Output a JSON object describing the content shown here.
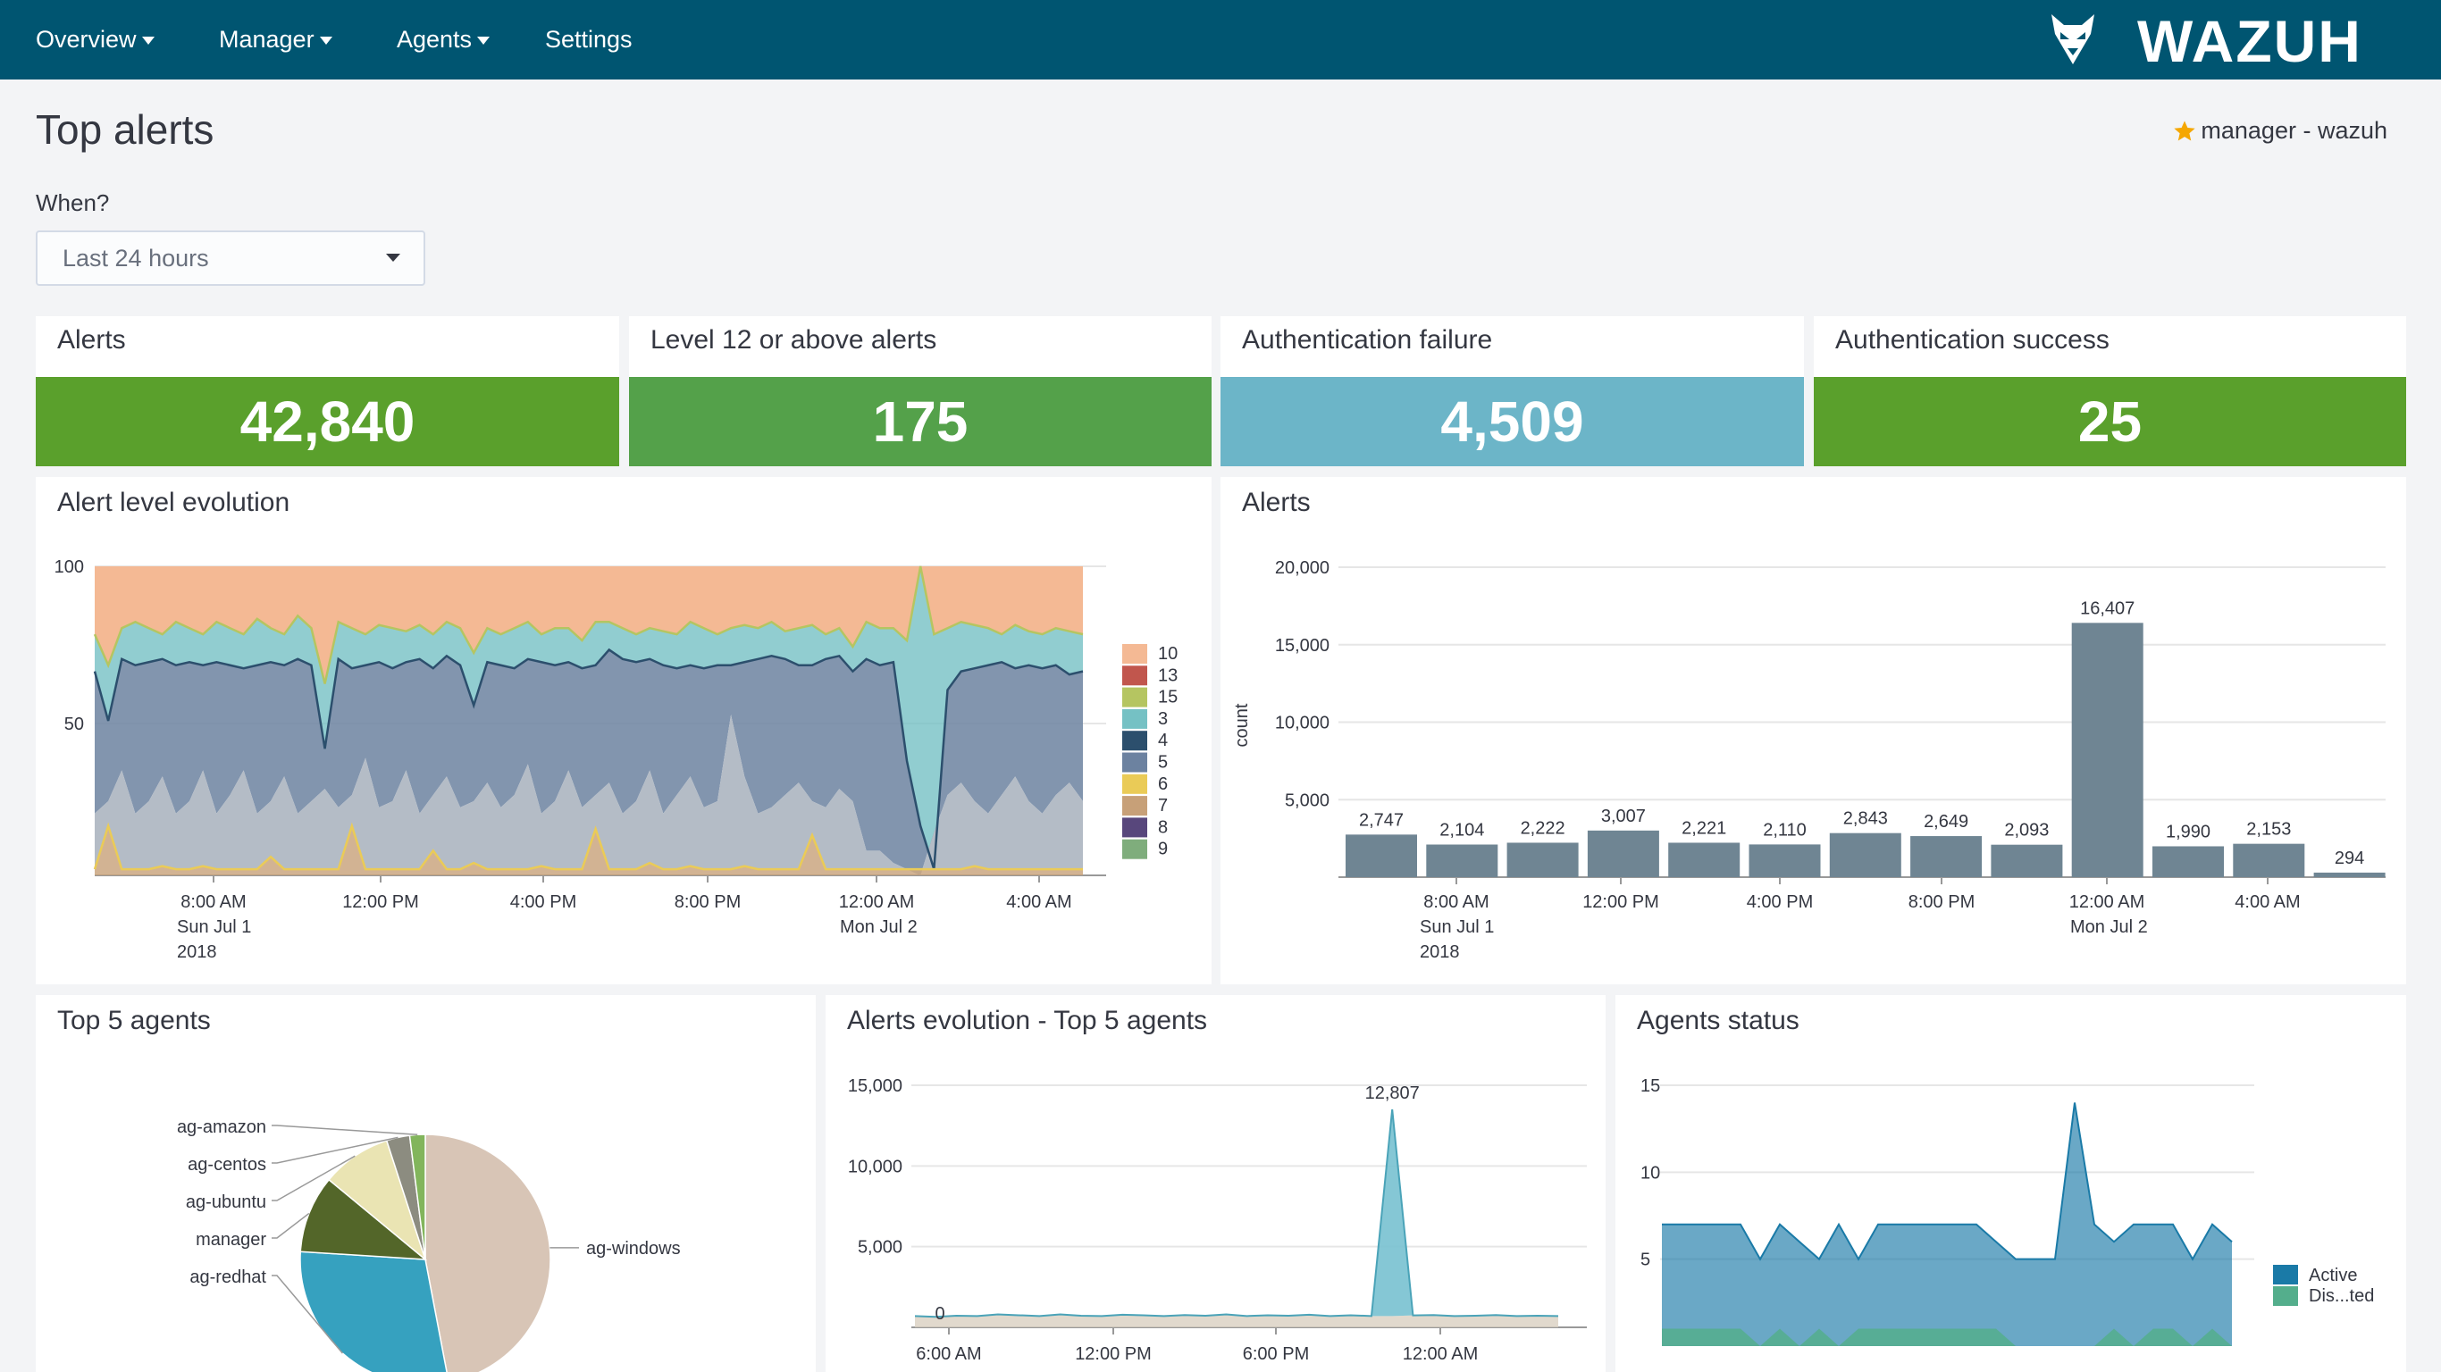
{
  "nav": {
    "items": [
      {
        "label": "Overview",
        "caret": true
      },
      {
        "label": "Manager",
        "caret": true
      },
      {
        "label": "Agents",
        "caret": true
      },
      {
        "label": "Settings",
        "caret": false
      }
    ],
    "brand": "WAZUH"
  },
  "page": {
    "title": "Top alerts",
    "manager_label": "manager - wazuh",
    "when_label": "When?",
    "time_range": "Last 24 hours"
  },
  "metrics": [
    {
      "title": "Alerts",
      "value": "42,840",
      "color": "#5aa02c"
    },
    {
      "title": "Level 12 or above alerts",
      "value": "175",
      "color": "#54a14a"
    },
    {
      "title": "Authentication failure",
      "value": "4,509",
      "color": "#6cb5c8"
    },
    {
      "title": "Authentication success",
      "value": "25",
      "color": "#5aa02c"
    }
  ],
  "panels": {
    "alert_level_evolution": "Alert level evolution",
    "alerts": "Alerts",
    "top5_agents": "Top 5 agents",
    "alerts_evolution_top5": "Alerts evolution - Top 5 agents",
    "agents_status": "Agents status"
  },
  "chart_data": [
    {
      "id": "alert_level_evolution",
      "type": "area",
      "title": "Alert level evolution",
      "stacked": "percentage",
      "y_ticks": [
        "100",
        "50"
      ],
      "x_tick_labels": [
        "8:00 AM",
        "12:00 PM",
        "4:00 PM",
        "8:00 PM",
        "12:00 AM",
        "4:00 AM"
      ],
      "x_sub_labels": [
        [
          "Sun Jul 1",
          "2018"
        ],
        [],
        [],
        [],
        [
          "Mon Jul 2"
        ],
        []
      ],
      "legend": [
        "10",
        "13",
        "15",
        "3",
        "4",
        "5",
        "6",
        "7",
        "8",
        "9"
      ],
      "colors": {
        "10": "#f4b994",
        "13": "#c1564d",
        "15": "#b5c561",
        "3": "#75c1c4",
        "4": "#2c4f6d",
        "5": "#6c82a0",
        "6": "#eacb57",
        "7": "#c7a078",
        "8": "#58477c",
        "9": "#7fad7c"
      },
      "boundaries": {
        "level5_top": [
          66,
          50,
          70,
          68,
          69,
          70,
          68,
          69,
          68,
          69,
          68,
          67,
          68,
          69,
          68,
          70,
          68,
          41,
          70,
          67,
          68,
          69,
          67,
          69,
          70,
          67,
          71,
          68,
          55,
          69,
          68,
          67,
          70,
          69,
          68,
          69,
          67,
          68,
          73,
          70,
          69,
          70,
          68,
          67,
          68,
          67,
          68,
          68,
          69,
          70,
          71,
          70,
          68,
          68,
          70,
          71,
          66,
          70,
          68,
          69,
          37,
          16,
          2,
          60,
          66,
          67,
          68,
          69,
          67,
          68,
          67,
          68,
          65,
          66
        ],
        "level3_top": [
          78,
          68,
          80,
          82,
          80,
          78,
          82,
          80,
          78,
          82,
          80,
          78,
          83,
          80,
          78,
          84,
          80,
          62,
          82,
          80,
          78,
          81,
          80,
          79,
          81,
          78,
          82,
          80,
          72,
          80,
          78,
          80,
          82,
          78,
          80,
          80,
          76,
          82,
          82,
          80,
          78,
          80,
          79,
          78,
          82,
          80,
          78,
          80,
          81,
          80,
          82,
          79,
          80,
          81,
          78,
          80,
          74,
          82,
          80,
          80,
          76,
          100,
          78,
          80,
          82,
          81,
          80,
          78,
          81,
          79,
          78,
          80,
          79,
          78
        ],
        "level6_top": [
          20,
          24,
          34,
          20,
          24,
          32,
          20,
          24,
          34,
          20,
          26,
          34,
          20,
          24,
          32,
          20,
          24,
          28,
          22,
          26,
          38,
          22,
          24,
          34,
          20,
          26,
          32,
          22,
          24,
          30,
          22,
          26,
          36,
          20,
          24,
          34,
          22,
          26,
          30,
          20,
          24,
          34,
          20,
          26,
          32,
          22,
          24,
          52,
          32,
          20,
          22,
          26,
          30,
          24,
          22,
          28,
          24,
          8,
          8,
          4,
          2,
          0,
          14,
          26,
          30,
          24,
          20,
          26,
          32,
          24,
          20,
          26,
          30,
          24
        ],
        "level7_top": [
          2,
          16,
          2,
          2,
          2,
          3,
          2,
          2,
          3,
          2,
          2,
          2,
          2,
          6,
          2,
          2,
          2,
          2,
          2,
          16,
          2,
          2,
          2,
          2,
          2,
          8,
          2,
          2,
          4,
          2,
          2,
          2,
          2,
          3,
          2,
          2,
          2,
          15,
          2,
          2,
          2,
          4,
          2,
          2,
          3,
          2,
          2,
          2,
          3,
          2,
          2,
          2,
          2,
          13,
          2,
          2,
          2,
          2,
          2,
          2,
          2,
          2,
          2,
          2,
          2,
          3,
          2,
          2,
          2,
          2,
          2,
          2,
          2,
          2
        ]
      }
    },
    {
      "id": "alerts_histogram",
      "type": "bar",
      "title": "Alerts",
      "ylabel": "count",
      "ylim": [
        0,
        20000
      ],
      "y_ticks": [
        "20,000",
        "15,000",
        "10,000",
        "5,000"
      ],
      "x_tick_labels": [
        "8:00 AM",
        "12:00 PM",
        "4:00 PM",
        "8:00 PM",
        "12:00 AM",
        "4:00 AM"
      ],
      "x_sub_labels": [
        [
          "Sun Jul 1",
          "2018"
        ],
        [],
        [],
        [],
        [
          "Mon Jul 2"
        ],
        []
      ],
      "values": [
        2747,
        2104,
        2222,
        3007,
        2221,
        2110,
        2843,
        2649,
        2093,
        16407,
        1990,
        2153,
        294
      ],
      "value_labels": [
        "2,747",
        "2,104",
        "2,222",
        "3,007",
        "2,221",
        "2,110",
        "2,843",
        "2,649",
        "2,093",
        "16,407",
        "1,990",
        "2,153",
        "294"
      ],
      "color": "#6f8593"
    },
    {
      "id": "top5_agents",
      "type": "pie",
      "title": "Top 5 agents",
      "labels": [
        "ag-windows",
        "ag-redhat",
        "manager",
        "ag-ubuntu",
        "ag-centos",
        "ag-amazon"
      ],
      "values": [
        47,
        29,
        10,
        9,
        3,
        2
      ],
      "colors": [
        "#d8c5b6",
        "#36a1bf",
        "#536629",
        "#eae4b3",
        "#8c8c80",
        "#82b55c"
      ]
    },
    {
      "id": "alerts_evolution_top5",
      "type": "area",
      "title": "Alerts evolution - Top 5 agents",
      "ylim": [
        0,
        15000
      ],
      "y_ticks": [
        "15,000",
        "10,000",
        "5,000"
      ],
      "x_tick_labels": [
        "6:00 AM",
        "12:00 PM",
        "6:00 PM",
        "12:00 AM"
      ],
      "peak_label": "12,807",
      "zero_label": "0",
      "colors": [
        "#78c1d0",
        "#d9cfc0",
        "#8c8c6c"
      ],
      "series_top": [
        0,
        0,
        0,
        0,
        0,
        0,
        0,
        0,
        0,
        0,
        0,
        0,
        0,
        0,
        0,
        0,
        0,
        0,
        0,
        0,
        0,
        0,
        0,
        12807,
        0,
        0,
        0,
        0,
        0,
        0,
        0,
        0
      ],
      "series_base": [
        700,
        650,
        720,
        700,
        800,
        750,
        700,
        800,
        720,
        700,
        780,
        750,
        700,
        760,
        720,
        800,
        700,
        750,
        720,
        780,
        700,
        750,
        700,
        700,
        740,
        760,
        700,
        720,
        760,
        700,
        720,
        700
      ]
    },
    {
      "id": "agents_status",
      "type": "area",
      "title": "Agents status",
      "ylim": [
        0,
        15
      ],
      "y_ticks": [
        "15",
        "10",
        "5"
      ],
      "legend": [
        "Active",
        "Dis...ted"
      ],
      "colors": {
        "Active": "#1a7aa7",
        "Disconnected": "#54ae8c"
      },
      "active": [
        7,
        7,
        7,
        7,
        7,
        5,
        7,
        6,
        5,
        7,
        5,
        7,
        7,
        7,
        7,
        7,
        7,
        6,
        5,
        5,
        5,
        14,
        7,
        6,
        7,
        7,
        7,
        5,
        7,
        6
      ],
      "disconnected": [
        1,
        1,
        1,
        1,
        1,
        0,
        1,
        0,
        1,
        0,
        1,
        1,
        1,
        1,
        1,
        1,
        1,
        1,
        0,
        0,
        0,
        0,
        0,
        1,
        0,
        1,
        1,
        0,
        1,
        0
      ]
    }
  ]
}
